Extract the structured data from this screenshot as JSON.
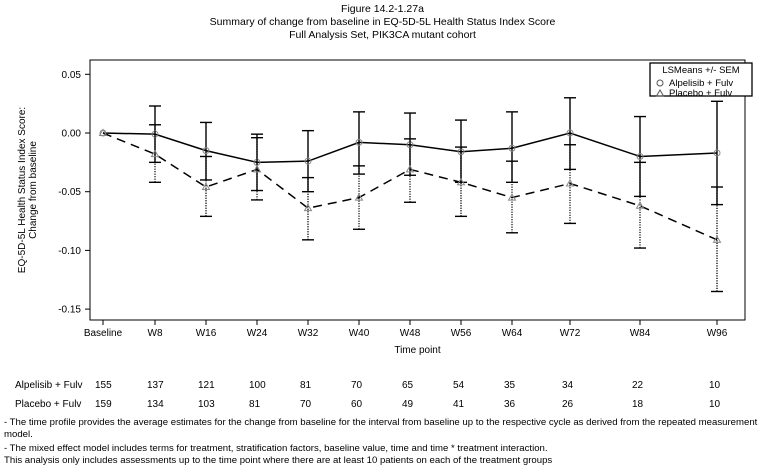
{
  "header": {
    "figure_number": "Figure 14.2-1.27a",
    "title": "Summary of change from baseline in EQ-5D-5L Health Status Index Score",
    "subtitle": "Full Analysis Set, PIK3CA mutant cohort"
  },
  "chart_data": {
    "type": "line",
    "xlabel": "Time point",
    "ylabel_lines": [
      "EQ-5D-5L Health Status Index Score:",
      "Change from baseline"
    ],
    "categories": [
      "Baseline",
      "W8",
      "W16",
      "W24",
      "W32",
      "W40",
      "W48",
      "W56",
      "W64",
      "W72",
      "W84",
      "W96"
    ],
    "ylim": [
      -0.16,
      0.072
    ],
    "yticks": [
      0.05,
      0.0,
      -0.05,
      -0.1,
      -0.15
    ],
    "ytick_labels": [
      "0.05",
      "0.00",
      "-0.05",
      "-0.10",
      "-0.15"
    ],
    "grid": false,
    "legend": {
      "title": "LSMeans +/- SEM",
      "placement": "top-right"
    },
    "series": [
      {
        "name": "Alpelisib + Fulv",
        "marker": "circle",
        "line": "solid",
        "values": [
          0.0,
          -0.001,
          -0.015,
          -0.025,
          -0.024,
          -0.008,
          -0.01,
          -0.016,
          -0.013,
          0.0,
          -0.02,
          -0.017
        ],
        "lower": [
          0.0,
          -0.025,
          -0.04,
          -0.049,
          -0.05,
          -0.035,
          -0.036,
          -0.042,
          -0.042,
          -0.031,
          -0.054,
          -0.061
        ],
        "upper": [
          0.0,
          0.023,
          0.009,
          -0.001,
          0.002,
          0.018,
          0.017,
          0.011,
          0.018,
          0.03,
          0.014,
          0.027
        ]
      },
      {
        "name": "Placebo + Fulv",
        "marker": "triangle",
        "line": "dashed",
        "values": [
          0.0,
          -0.018,
          -0.046,
          -0.031,
          -0.064,
          -0.055,
          -0.031,
          -0.042,
          -0.055,
          -0.043,
          -0.062,
          -0.091
        ],
        "lower": [
          0.0,
          -0.042,
          -0.071,
          -0.057,
          -0.091,
          -0.082,
          -0.059,
          -0.071,
          -0.085,
          -0.077,
          -0.098,
          -0.135
        ],
        "upper": [
          0.0,
          0.007,
          -0.02,
          -0.004,
          -0.038,
          -0.028,
          -0.005,
          -0.012,
          -0.024,
          -0.01,
          -0.025,
          -0.046
        ]
      }
    ]
  },
  "counts": [
    {
      "label": "Alpelisib + Fulv",
      "values": [
        "155",
        "137",
        "121",
        "100",
        "81",
        "70",
        "65",
        "54",
        "35",
        "34",
        "22",
        "10"
      ]
    },
    {
      "label": "Placebo + Fulv",
      "values": [
        "159",
        "134",
        "103",
        "81",
        "70",
        "60",
        "49",
        "41",
        "36",
        "26",
        "18",
        "10"
      ]
    }
  ],
  "footnotes": [
    "- The time profile provides the average estimates for the change from baseline for the interval from baseline up to the respective cycle as derived from the repeated measurement model.",
    "- The mixed effect model includes terms for treatment, stratification factors, baseline value, time and time * treatment interaction.",
    "This analysis only includes assessments up to the time point where there are at least 10 patients on each of the treatment groups"
  ]
}
